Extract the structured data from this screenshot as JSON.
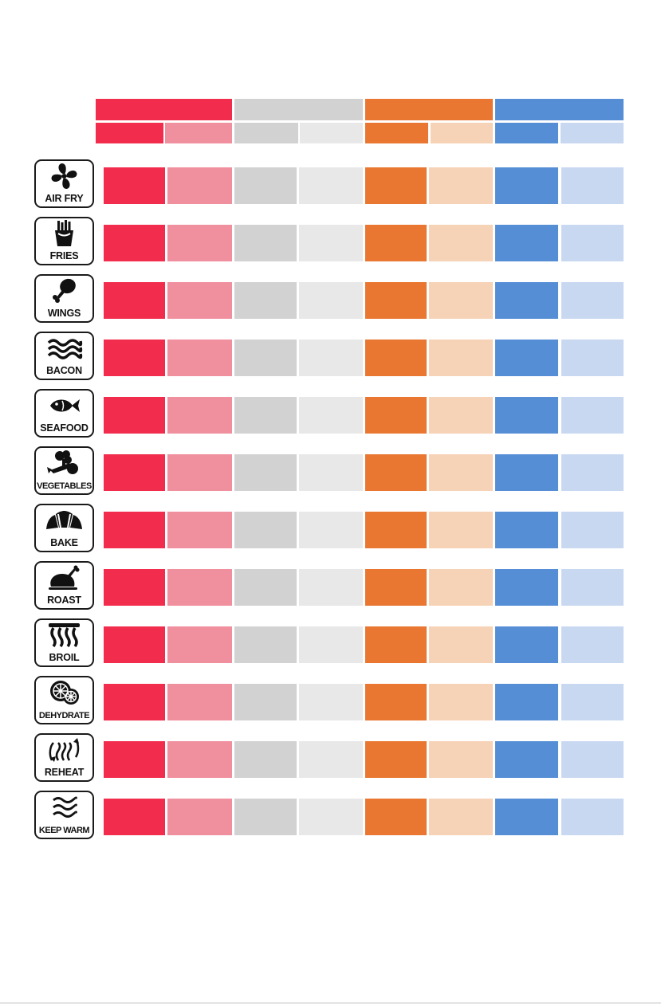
{
  "colors": {
    "red": "#f12c4c",
    "red_light": "#f08f9e",
    "grey": "#d2d2d2",
    "grey_light": "#e8e8e8",
    "orange": "#e97731",
    "orange_light": "#f6d2b6",
    "blue": "#558ed5",
    "blue_light": "#c9d8f1",
    "ink": "#111111"
  },
  "modes": [
    {
      "label": "AIR FRY",
      "icon": "fan-icon"
    },
    {
      "label": "FRIES",
      "icon": "fries-icon"
    },
    {
      "label": "WINGS",
      "icon": "drumstick-icon"
    },
    {
      "label": "BACON",
      "icon": "bacon-icon"
    },
    {
      "label": "SEAFOOD",
      "icon": "fish-icon"
    },
    {
      "label": "VEGETABLES",
      "icon": "vegetables-icon"
    },
    {
      "label": "BAKE",
      "icon": "croissant-icon"
    },
    {
      "label": "ROAST",
      "icon": "roast-chicken-icon"
    },
    {
      "label": "BROIL",
      "icon": "broil-icon"
    },
    {
      "label": "DEHYDRATE",
      "icon": "citrus-slices-icon"
    },
    {
      "label": "REHEAT",
      "icon": "reheat-icon"
    },
    {
      "label": "KEEP WARM",
      "icon": "keep-warm-icon"
    }
  ]
}
